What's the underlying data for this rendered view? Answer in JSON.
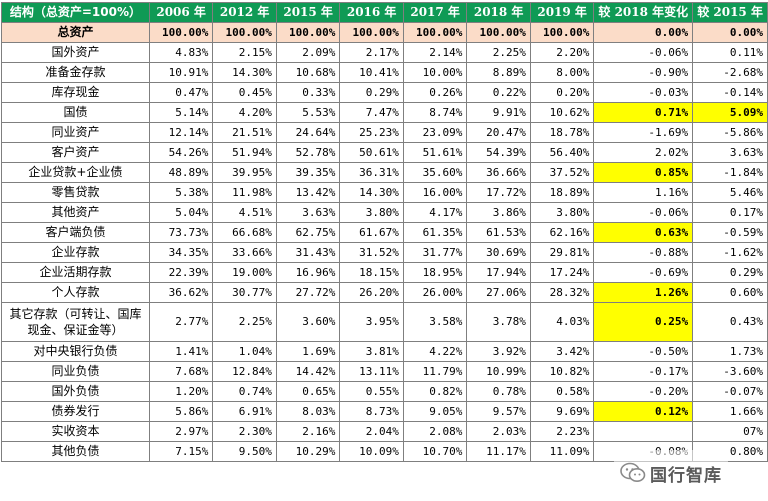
{
  "headers": [
    "结构（总资产=100%）",
    "2006 年",
    "2012 年",
    "2015 年",
    "2016 年",
    "2017 年",
    "2018 年",
    "2019 年",
    "较 2018 年变化",
    "较 2015 年"
  ],
  "rows": [
    {
      "label": "总资产",
      "values": [
        "100.00%",
        "100.00%",
        "100.00%",
        "100.00%",
        "100.00%",
        "100.00%",
        "100.00%",
        "0.00%",
        "0.00%"
      ],
      "total": true,
      "hl": []
    },
    {
      "label": "国外资产",
      "values": [
        "4.83%",
        "2.15%",
        "2.09%",
        "2.17%",
        "2.14%",
        "2.25%",
        "2.20%",
        "-0.06%",
        "0.11%"
      ],
      "hl": []
    },
    {
      "label": "准备金存款",
      "values": [
        "10.91%",
        "14.30%",
        "10.68%",
        "10.41%",
        "10.00%",
        "8.89%",
        "8.00%",
        "-0.90%",
        "-2.68%"
      ],
      "hl": []
    },
    {
      "label": "库存现金",
      "values": [
        "0.47%",
        "0.45%",
        "0.33%",
        "0.29%",
        "0.26%",
        "0.22%",
        "0.20%",
        "-0.03%",
        "-0.14%"
      ],
      "hl": []
    },
    {
      "label": "国债",
      "values": [
        "5.14%",
        "4.20%",
        "5.53%",
        "7.47%",
        "8.74%",
        "9.91%",
        "10.62%",
        "0.71%",
        "5.09%"
      ],
      "hl": [
        7,
        8
      ]
    },
    {
      "label": "同业资产",
      "values": [
        "12.14%",
        "21.51%",
        "24.64%",
        "25.23%",
        "23.09%",
        "20.47%",
        "18.78%",
        "-1.69%",
        "-5.86%"
      ],
      "hl": []
    },
    {
      "label": "客户资产",
      "values": [
        "54.26%",
        "51.94%",
        "52.78%",
        "50.61%",
        "51.61%",
        "54.39%",
        "56.40%",
        "2.02%",
        "3.63%"
      ],
      "hl": []
    },
    {
      "label": "企业贷款+企业债",
      "values": [
        "48.89%",
        "39.95%",
        "39.35%",
        "36.31%",
        "35.60%",
        "36.66%",
        "37.52%",
        "0.85%",
        "-1.84%"
      ],
      "hl": [
        7
      ]
    },
    {
      "label": "零售贷款",
      "values": [
        "5.38%",
        "11.98%",
        "13.42%",
        "14.30%",
        "16.00%",
        "17.72%",
        "18.89%",
        "1.16%",
        "5.46%"
      ],
      "hl": []
    },
    {
      "label": "其他资产",
      "values": [
        "5.04%",
        "4.51%",
        "3.63%",
        "3.80%",
        "4.17%",
        "3.86%",
        "3.80%",
        "-0.06%",
        "0.17%"
      ],
      "hl": []
    },
    {
      "label": "客户端负债",
      "values": [
        "73.73%",
        "66.68%",
        "62.75%",
        "61.67%",
        "61.35%",
        "61.53%",
        "62.16%",
        "0.63%",
        "-0.59%"
      ],
      "hl": [
        7
      ]
    },
    {
      "label": "企业存款",
      "values": [
        "34.35%",
        "33.66%",
        "31.43%",
        "31.52%",
        "31.77%",
        "30.69%",
        "29.81%",
        "-0.88%",
        "-1.62%"
      ],
      "hl": []
    },
    {
      "label": "企业活期存款",
      "values": [
        "22.39%",
        "19.00%",
        "16.96%",
        "18.15%",
        "18.95%",
        "17.94%",
        "17.24%",
        "-0.69%",
        "0.29%"
      ],
      "hl": []
    },
    {
      "label": "个人存款",
      "values": [
        "36.62%",
        "30.77%",
        "27.72%",
        "26.20%",
        "26.00%",
        "27.06%",
        "28.32%",
        "1.26%",
        "0.60%"
      ],
      "hl": [
        7
      ]
    },
    {
      "label": "其它存款（可转让、国库现金、保证金等）",
      "values": [
        "2.77%",
        "2.25%",
        "3.60%",
        "3.95%",
        "3.58%",
        "3.78%",
        "4.03%",
        "0.25%",
        "0.43%"
      ],
      "hl": [
        7
      ],
      "tall": true
    },
    {
      "label": "对中央银行负债",
      "values": [
        "1.41%",
        "1.04%",
        "1.69%",
        "3.81%",
        "4.22%",
        "3.92%",
        "3.42%",
        "-0.50%",
        "1.73%"
      ],
      "hl": []
    },
    {
      "label": "同业负债",
      "values": [
        "7.68%",
        "12.84%",
        "14.42%",
        "13.11%",
        "11.79%",
        "10.99%",
        "10.82%",
        "-0.17%",
        "-3.60%"
      ],
      "hl": []
    },
    {
      "label": "国外负债",
      "values": [
        "1.20%",
        "0.74%",
        "0.65%",
        "0.55%",
        "0.82%",
        "0.78%",
        "0.58%",
        "-0.20%",
        "-0.07%"
      ],
      "hl": []
    },
    {
      "label": "债券发行",
      "values": [
        "5.86%",
        "6.91%",
        "8.03%",
        "8.73%",
        "9.05%",
        "9.57%",
        "9.69%",
        "0.12%",
        "1.66%"
      ],
      "hl": [
        7
      ]
    },
    {
      "label": "实收资本",
      "values": [
        "2.97%",
        "2.30%",
        "2.16%",
        "2.04%",
        "2.08%",
        "2.03%",
        "2.23%",
        "",
        "07%"
      ],
      "hl": []
    },
    {
      "label": "其他负债",
      "values": [
        "7.15%",
        "9.50%",
        "10.29%",
        "10.09%",
        "10.70%",
        "11.17%",
        "11.09%",
        "-0.08%",
        "0.80%"
      ],
      "hl": []
    }
  ],
  "watermark": {
    "text": "国行智库",
    "icon": "wechat-icon"
  },
  "colors": {
    "header_bg": "#0f9a55",
    "total_bg": "#fbdcc8",
    "highlight": "#ffff00",
    "grid": "#7f7f7f"
  }
}
